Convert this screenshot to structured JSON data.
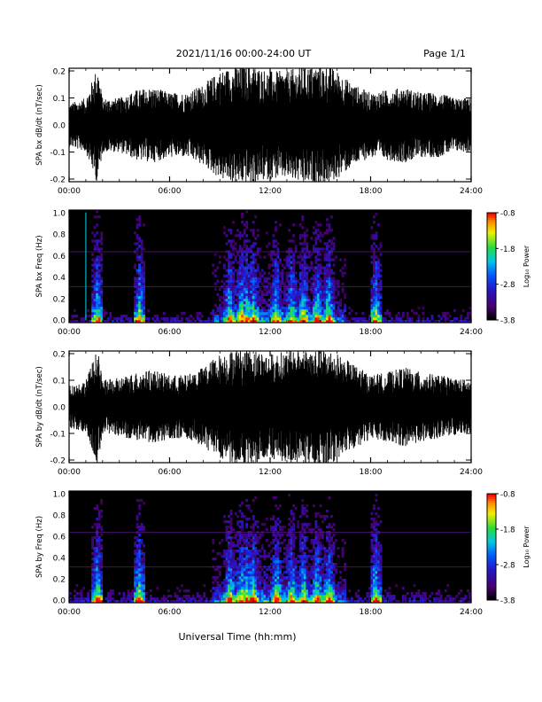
{
  "header": {
    "title": "2021/11/16  00:00-24:00 UT",
    "page": "Page 1/1"
  },
  "xaxis": {
    "label": "Universal Time (hh:mm)",
    "ticks": [
      "00:00",
      "06:00",
      "12:00",
      "18:00",
      "24:00"
    ]
  },
  "colorbar": {
    "label": "Log₁₀ Power",
    "ticks": [
      "-0.8",
      "-1.8",
      "-2.8",
      "-3.8"
    ]
  },
  "chart_data": [
    {
      "type": "line",
      "id": "bx-waveform",
      "ylabel": "SPA bx dB/dt (nT/sec)",
      "xlim_hours": [
        0,
        24
      ],
      "ylim": [
        -0.2,
        0.2
      ],
      "yticks": [
        "0.2",
        "0.1",
        "0.0",
        "-0.1",
        "-0.2"
      ],
      "envelope": {
        "x_hours": [
          0,
          1,
          1.7,
          2,
          3,
          4,
          5,
          6,
          7,
          8,
          9,
          10,
          11,
          12,
          13,
          14,
          15,
          15.5,
          16,
          17,
          18,
          19,
          20,
          21,
          22,
          23,
          24
        ],
        "amplitude": [
          0.08,
          0.1,
          0.22,
          0.1,
          0.1,
          0.13,
          0.14,
          0.12,
          0.12,
          0.15,
          0.2,
          0.22,
          0.22,
          0.2,
          0.2,
          0.22,
          0.22,
          0.22,
          0.2,
          0.15,
          0.12,
          0.13,
          0.14,
          0.12,
          0.12,
          0.1,
          0.1
        ]
      }
    },
    {
      "type": "heatmap",
      "id": "bx-spectrogram",
      "ylabel": "SPA bx Freq (Hz)",
      "xlim_hours": [
        0,
        24
      ],
      "ylim": [
        0.0,
        1.0
      ],
      "yticks": [
        "1.0",
        "0.8",
        "0.6",
        "0.4",
        "0.2",
        "0.0"
      ],
      "zlim_log10_power": [
        -3.8,
        -0.8
      ],
      "active_bursts_hours": [
        1.7,
        4.2,
        9.6,
        10.3,
        10.6,
        11.0,
        12.4,
        13.3,
        14.0,
        14.8,
        15.5,
        18.3
      ]
    },
    {
      "type": "line",
      "id": "by-waveform",
      "ylabel": "SPA by dB/dt (nT/sec)",
      "xlim_hours": [
        0,
        24
      ],
      "ylim": [
        -0.2,
        0.2
      ],
      "yticks": [
        "0.2",
        "0.1",
        "0.0",
        "-0.1",
        "-0.2"
      ],
      "envelope": {
        "x_hours": [
          0,
          1,
          1.7,
          2,
          3,
          4,
          5,
          6,
          7,
          8,
          9,
          10,
          11,
          12,
          13,
          14,
          15,
          15.5,
          16,
          17,
          18,
          19,
          20,
          21,
          22,
          23,
          24
        ],
        "amplitude": [
          0.08,
          0.1,
          0.22,
          0.1,
          0.11,
          0.13,
          0.14,
          0.12,
          0.12,
          0.15,
          0.2,
          0.22,
          0.22,
          0.2,
          0.21,
          0.22,
          0.22,
          0.22,
          0.2,
          0.16,
          0.12,
          0.13,
          0.15,
          0.13,
          0.12,
          0.11,
          0.1
        ]
      }
    },
    {
      "type": "heatmap",
      "id": "by-spectrogram",
      "ylabel": "SPA by Freq (Hz)",
      "xlim_hours": [
        0,
        24
      ],
      "ylim": [
        0.0,
        1.0
      ],
      "yticks": [
        "1.0",
        "0.8",
        "0.6",
        "0.4",
        "0.2",
        "0.0"
      ],
      "zlim_log10_power": [
        -3.8,
        -0.8
      ],
      "active_bursts_hours": [
        1.7,
        4.2,
        9.6,
        10.3,
        10.6,
        11.0,
        12.4,
        13.3,
        14.0,
        14.8,
        15.5,
        18.3
      ]
    }
  ]
}
